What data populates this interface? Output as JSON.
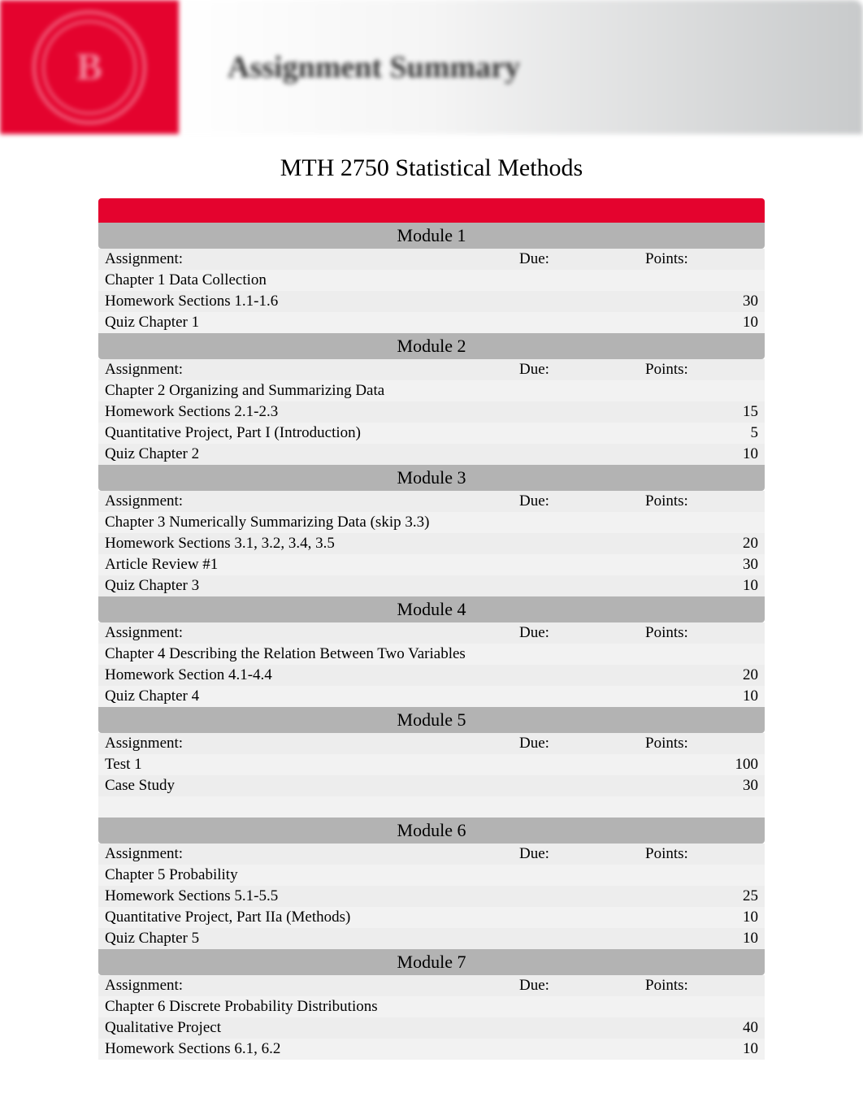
{
  "banner": {
    "title": "Assignment Summary",
    "logo_letter": "B",
    "logo_bg_color": "#e4032e"
  },
  "course_title": "MTH 2750 Statistical Methods",
  "labels": {
    "assignment": "Assignment:",
    "due": "Due:",
    "points": "Points:"
  },
  "colors": {
    "red_bar": "#e4032e",
    "module_header_bg": "#b3b3b3",
    "row_alt1": "#f2f2f2",
    "row_alt2": "#ededed"
  },
  "modules": [
    {
      "title": "Module 1",
      "rows": [
        {
          "assignment": "Chapter 1 Data Collection",
          "due": "",
          "points": ""
        },
        {
          "assignment": "Homework Sections 1.1-1.6",
          "due": "",
          "points": "30"
        },
        {
          "assignment": "Quiz Chapter 1",
          "due": "",
          "points": "10"
        }
      ]
    },
    {
      "title": "Module 2",
      "rows": [
        {
          "assignment": "Chapter 2 Organizing and Summarizing Data",
          "due": "",
          "points": ""
        },
        {
          "assignment": "Homework Sections 2.1-2.3",
          "due": "",
          "points": "15"
        },
        {
          "assignment": "Quantitative Project, Part I (Introduction)",
          "due": "",
          "points": "5"
        },
        {
          "assignment": "Quiz Chapter 2",
          "due": "",
          "points": "10"
        }
      ]
    },
    {
      "title": "Module 3",
      "rows": [
        {
          "assignment": "Chapter 3 Numerically Summarizing Data (skip 3.3)",
          "due": "",
          "points": ""
        },
        {
          "assignment": "Homework Sections 3.1, 3.2, 3.4, 3.5",
          "due": "",
          "points": "20"
        },
        {
          "assignment": "Article Review #1",
          "due": "",
          "points": "30"
        },
        {
          "assignment": "Quiz Chapter 3",
          "due": "",
          "points": "10"
        }
      ]
    },
    {
      "title": "Module 4",
      "rows": [
        {
          "assignment": "Chapter 4 Describing the Relation Between Two Variables",
          "due": "",
          "points": ""
        },
        {
          "assignment": "Homework Section 4.1-4.4",
          "due": "",
          "points": "20"
        },
        {
          "assignment": "Quiz Chapter 4",
          "due": "",
          "points": "10"
        }
      ]
    },
    {
      "title": "Module 5",
      "rows": [
        {
          "assignment": "Test 1",
          "due": "",
          "points": "100"
        },
        {
          "assignment": "Case Study",
          "due": "",
          "points": "30"
        }
      ],
      "spacer_after": true
    },
    {
      "title": "Module 6",
      "rows": [
        {
          "assignment": "Chapter 5 Probability",
          "due": "",
          "points": ""
        },
        {
          "assignment": "Homework Sections 5.1-5.5",
          "due": "",
          "points": "25"
        },
        {
          "assignment": "Quantitative Project, Part IIa (Methods)",
          "due": "",
          "points": "10"
        },
        {
          "assignment": "Quiz Chapter 5",
          "due": "",
          "points": "10"
        }
      ]
    },
    {
      "title": "Module 7",
      "rows": [
        {
          "assignment": "Chapter 6 Discrete Probability Distributions",
          "due": "",
          "points": ""
        },
        {
          "assignment": "Qualitative Project",
          "due": "",
          "points": "40"
        },
        {
          "assignment": "Homework Sections 6.1, 6.2",
          "due": "",
          "points": "10"
        }
      ]
    }
  ]
}
